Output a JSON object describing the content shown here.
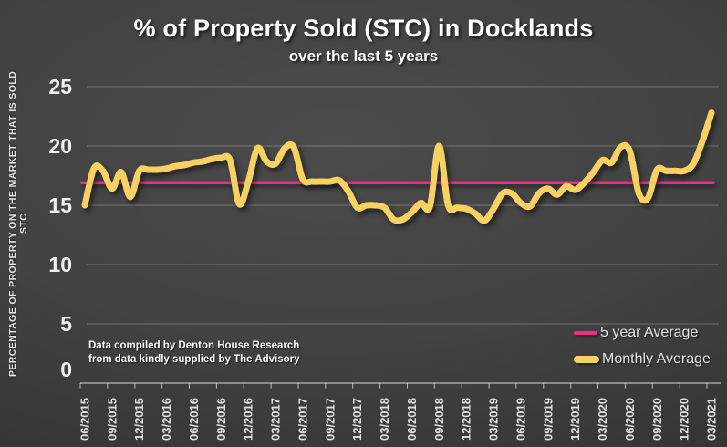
{
  "title": "% of Property Sold (STC) in Docklands",
  "subtitle": "over the last 5 years",
  "y_axis": {
    "title": "PERCENTAGE OF PROPERTY ON THE MARKET THAT IS SOLD STC",
    "ticks": [
      0,
      5,
      10,
      15,
      20,
      25
    ]
  },
  "source": {
    "line1": "Data compiled by Denton House Research",
    "line2": "from data kindly supplied by The Advisory"
  },
  "legend": {
    "average_label": "5 year Average",
    "monthly_label": "Monthly Average"
  },
  "colors": {
    "monthly_line": "#f7d162",
    "average_line": "#ee2d87",
    "grid": "rgba(255,255,255,0.26)",
    "axis": "#bdbdbd",
    "tick_text": "#f0f0f0",
    "x_label_text": "#e0e0e0"
  },
  "chart_data": {
    "type": "line",
    "title": "% of Property Sold (STC) in Docklands",
    "subtitle": "over the last 5 years",
    "ylabel": "PERCENTAGE OF PROPERTY ON THE MARKET THAT IS SOLD STC",
    "ylim": [
      0,
      25
    ],
    "grid": "horizontal",
    "legend_position": "bottom-right",
    "x_tick_labels": [
      "06/2015",
      "09/2015",
      "12/2015",
      "03/2016",
      "06/2016",
      "09/2016",
      "12/2016",
      "03/2017",
      "06/2017",
      "09/2017",
      "12/2017",
      "03/2018",
      "06/2018",
      "09/2018",
      "12/2018",
      "03/2019",
      "06/2019",
      "09/2019",
      "12/2019",
      "03/2020",
      "06/2020",
      "09/2020",
      "12/2020",
      "03/2021"
    ],
    "x": [
      "06/2015",
      "07/2015",
      "08/2015",
      "09/2015",
      "10/2015",
      "11/2015",
      "12/2015",
      "01/2016",
      "02/2016",
      "03/2016",
      "04/2016",
      "05/2016",
      "06/2016",
      "07/2016",
      "08/2016",
      "09/2016",
      "10/2016",
      "11/2016",
      "12/2016",
      "01/2017",
      "02/2017",
      "03/2017",
      "04/2017",
      "05/2017",
      "06/2017",
      "07/2017",
      "08/2017",
      "09/2017",
      "10/2017",
      "11/2017",
      "12/2017",
      "01/2018",
      "02/2018",
      "03/2018",
      "04/2018",
      "05/2018",
      "06/2018",
      "07/2018",
      "08/2018",
      "09/2018",
      "10/2018",
      "11/2018",
      "12/2018",
      "01/2019",
      "02/2019",
      "03/2019",
      "04/2019",
      "05/2019",
      "06/2019",
      "07/2019",
      "08/2019",
      "09/2019",
      "10/2019",
      "11/2019",
      "12/2019",
      "01/2020",
      "02/2020",
      "03/2020",
      "04/2020",
      "05/2020",
      "06/2020",
      "07/2020",
      "08/2020",
      "09/2020",
      "10/2020",
      "11/2020",
      "12/2020",
      "01/2021",
      "02/2021",
      "03/2021"
    ],
    "series": [
      {
        "name": "Monthly Average",
        "color": "#f7d162",
        "values": [
          15.0,
          18.1,
          17.9,
          16.4,
          17.8,
          15.7,
          17.9,
          18.0,
          18.0,
          18.1,
          18.3,
          18.4,
          18.6,
          18.7,
          18.9,
          19.0,
          18.8,
          15.1,
          17.0,
          19.8,
          18.7,
          18.5,
          19.8,
          19.9,
          17.2,
          17.0,
          17.0,
          17.0,
          17.1,
          16.2,
          14.8,
          15.0,
          15.0,
          14.8,
          13.8,
          13.8,
          14.4,
          15.2,
          14.9,
          20.0,
          15.0,
          14.8,
          14.7,
          14.3,
          13.7,
          14.7,
          16.0,
          16.0,
          15.2,
          14.9,
          16.0,
          16.4,
          15.9,
          16.6,
          16.3,
          16.9,
          17.8,
          18.8,
          18.6,
          19.9,
          19.6,
          16.0,
          15.6,
          18.0,
          17.9,
          17.9,
          17.9,
          18.5,
          20.4,
          22.8
        ]
      },
      {
        "name": "5 year Average",
        "color": "#ee2d87",
        "constant_value": 16.9
      }
    ]
  }
}
